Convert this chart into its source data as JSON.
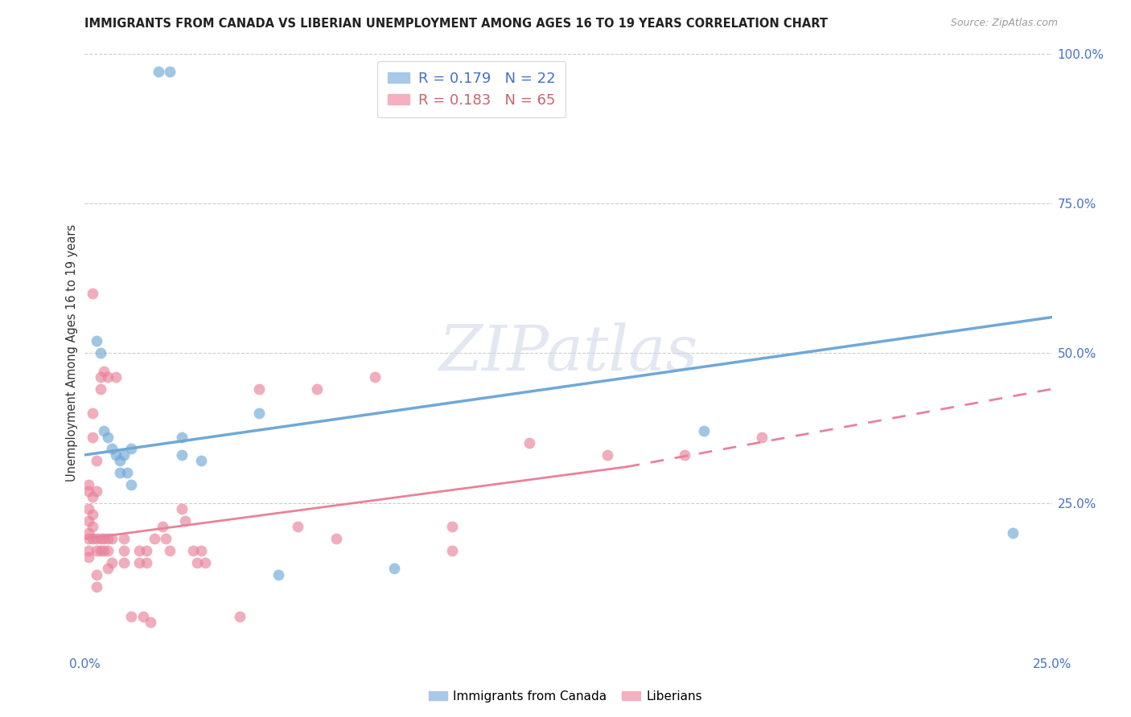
{
  "title": "IMMIGRANTS FROM CANADA VS LIBERIAN UNEMPLOYMENT AMONG AGES 16 TO 19 YEARS CORRELATION CHART",
  "source": "Source: ZipAtlas.com",
  "ylabel": "Unemployment Among Ages 16 to 19 years",
  "xlim": [
    0.0,
    0.25
  ],
  "ylim": [
    0.0,
    1.0
  ],
  "xticks": [
    0.0,
    0.05,
    0.1,
    0.15,
    0.2,
    0.25
  ],
  "xticklabels": [
    "0.0%",
    "",
    "",
    "",
    "",
    "25.0%"
  ],
  "yticks_right": [
    0.25,
    0.5,
    0.75,
    1.0
  ],
  "yticklabels_right": [
    "25.0%",
    "50.0%",
    "75.0%",
    "100.0%"
  ],
  "watermark": "ZIPatlas",
  "blue_color": "#6fa8d6",
  "pink_color": "#e8829a",
  "blue_scatter": [
    [
      0.019,
      0.97
    ],
    [
      0.022,
      0.97
    ],
    [
      0.003,
      0.52
    ],
    [
      0.004,
      0.5
    ],
    [
      0.005,
      0.37
    ],
    [
      0.006,
      0.36
    ],
    [
      0.007,
      0.34
    ],
    [
      0.008,
      0.33
    ],
    [
      0.009,
      0.32
    ],
    [
      0.009,
      0.3
    ],
    [
      0.01,
      0.33
    ],
    [
      0.011,
      0.3
    ],
    [
      0.012,
      0.34
    ],
    [
      0.012,
      0.28
    ],
    [
      0.045,
      0.4
    ],
    [
      0.16,
      0.37
    ],
    [
      0.24,
      0.2
    ],
    [
      0.08,
      0.14
    ],
    [
      0.025,
      0.36
    ],
    [
      0.025,
      0.33
    ],
    [
      0.03,
      0.32
    ],
    [
      0.05,
      0.13
    ]
  ],
  "pink_scatter": [
    [
      0.001,
      0.2
    ],
    [
      0.001,
      0.19
    ],
    [
      0.001,
      0.17
    ],
    [
      0.001,
      0.16
    ],
    [
      0.001,
      0.22
    ],
    [
      0.001,
      0.24
    ],
    [
      0.001,
      0.27
    ],
    [
      0.001,
      0.28
    ],
    [
      0.002,
      0.19
    ],
    [
      0.002,
      0.21
    ],
    [
      0.002,
      0.23
    ],
    [
      0.002,
      0.26
    ],
    [
      0.002,
      0.6
    ],
    [
      0.002,
      0.4
    ],
    [
      0.002,
      0.36
    ],
    [
      0.003,
      0.19
    ],
    [
      0.003,
      0.17
    ],
    [
      0.003,
      0.13
    ],
    [
      0.003,
      0.11
    ],
    [
      0.003,
      0.27
    ],
    [
      0.003,
      0.32
    ],
    [
      0.004,
      0.46
    ],
    [
      0.004,
      0.44
    ],
    [
      0.004,
      0.19
    ],
    [
      0.004,
      0.17
    ],
    [
      0.005,
      0.47
    ],
    [
      0.005,
      0.19
    ],
    [
      0.005,
      0.17
    ],
    [
      0.006,
      0.46
    ],
    [
      0.006,
      0.19
    ],
    [
      0.006,
      0.17
    ],
    [
      0.006,
      0.14
    ],
    [
      0.007,
      0.19
    ],
    [
      0.007,
      0.15
    ],
    [
      0.008,
      0.46
    ],
    [
      0.01,
      0.19
    ],
    [
      0.01,
      0.17
    ],
    [
      0.01,
      0.15
    ],
    [
      0.012,
      0.06
    ],
    [
      0.014,
      0.17
    ],
    [
      0.014,
      0.15
    ],
    [
      0.015,
      0.06
    ],
    [
      0.016,
      0.17
    ],
    [
      0.016,
      0.15
    ],
    [
      0.018,
      0.19
    ],
    [
      0.02,
      0.21
    ],
    [
      0.021,
      0.19
    ],
    [
      0.022,
      0.17
    ],
    [
      0.025,
      0.24
    ],
    [
      0.026,
      0.22
    ],
    [
      0.028,
      0.17
    ],
    [
      0.029,
      0.15
    ],
    [
      0.03,
      0.17
    ],
    [
      0.031,
      0.15
    ],
    [
      0.045,
      0.44
    ],
    [
      0.055,
      0.21
    ],
    [
      0.06,
      0.44
    ],
    [
      0.065,
      0.19
    ],
    [
      0.075,
      0.46
    ],
    [
      0.095,
      0.21
    ],
    [
      0.095,
      0.17
    ],
    [
      0.115,
      0.35
    ],
    [
      0.135,
      0.33
    ],
    [
      0.155,
      0.33
    ],
    [
      0.175,
      0.36
    ],
    [
      0.017,
      0.05
    ],
    [
      0.04,
      0.06
    ]
  ],
  "blue_line": [
    0.0,
    0.25,
    0.33,
    0.56
  ],
  "pink_solid": [
    0.0,
    0.14,
    0.19,
    0.31
  ],
  "pink_dashed": [
    0.14,
    0.25,
    0.31,
    0.44
  ]
}
